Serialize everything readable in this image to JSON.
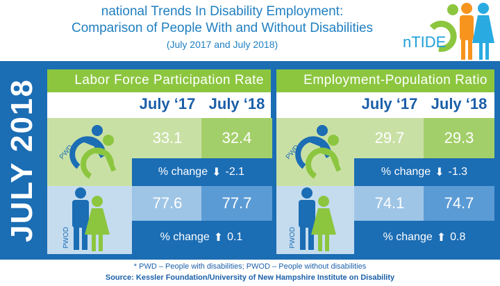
{
  "header": {
    "title_line1": "national Trends In Disability Employment:",
    "title_line2": "Comparison of People With and Without Disabilities",
    "subtitle": "(July 2017 and July 2018)",
    "logo_text": "nTIDE"
  },
  "side_label": "JULY 2018",
  "panels": [
    {
      "title": "Labor Force Participation Rate",
      "col1": "July ‘17",
      "col2": "July ‘18",
      "pwd_label": "PWD",
      "pwod_label": "PWOD",
      "pwd": {
        "v17": "33.1",
        "v18": "32.4",
        "change_label": "% change",
        "change_dir": "down",
        "change": "-2.1"
      },
      "pwod": {
        "v17": "77.6",
        "v18": "77.7",
        "change_label": "% change",
        "change_dir": "up",
        "change": "0.1"
      }
    },
    {
      "title": "Employment-Population Ratio",
      "col1": "July ‘17",
      "col2": "July ‘18",
      "pwd_label": "PWD",
      "pwod_label": "PWOD",
      "pwd": {
        "v17": "29.7",
        "v18": "29.3",
        "change_label": "% change",
        "change_dir": "down",
        "change": "-1.3"
      },
      "pwod": {
        "v17": "74.1",
        "v18": "74.7",
        "change_label": "% change",
        "change_dir": "up",
        "change": "0.8"
      }
    }
  ],
  "footer": {
    "note": "* PWD – People with disabilities;   PWOD – People without disabilities",
    "source": "Source: Kessler Foundation/University of New Hampshire Institute on Disability"
  },
  "colors": {
    "blue": "#1b6db4",
    "green": "#8cc63f",
    "orange": "#f7941d",
    "light_blue": "#29abe2"
  }
}
